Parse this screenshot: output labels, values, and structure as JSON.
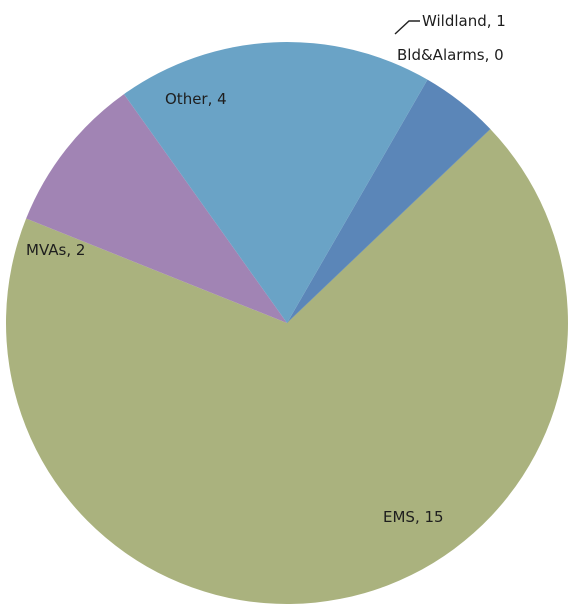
{
  "chart_data": {
    "type": "pie",
    "title": "",
    "start_angle_deg": 60,
    "direction": "clockwise",
    "slices": [
      {
        "label": "Wildland",
        "value": 1,
        "display": "Wildland, 1",
        "color": "#5b86b8"
      },
      {
        "label": "Bld&Alarms",
        "value": 0,
        "display": "Bld&Alarms, 0",
        "color": "#6a93c4"
      },
      {
        "label": "EMS",
        "value": 15,
        "display": "EMS, 15",
        "color": "#aab27e"
      },
      {
        "label": "MVAs",
        "value": 2,
        "display": "MVAs, 2",
        "color": "#a184b4"
      },
      {
        "label": "Other",
        "value": 4,
        "display": "Other, 4",
        "color": "#6aa3c6"
      }
    ]
  }
}
